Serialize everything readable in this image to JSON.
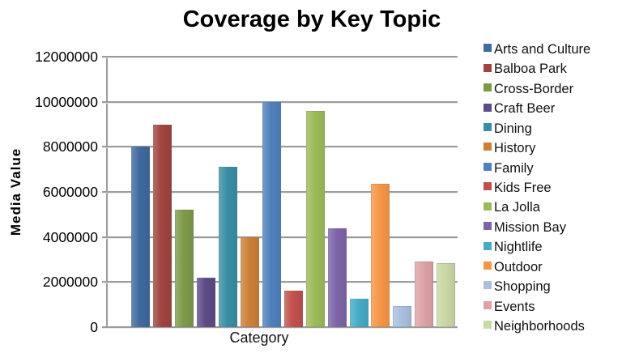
{
  "chart_data": {
    "type": "bar",
    "title": "Coverage by Key Topic",
    "xlabel": "Category",
    "ylabel": "Media Value",
    "ylim": [
      0,
      12000000
    ],
    "ytick_interval": 2000000,
    "yticks": [
      12000000,
      10000000,
      8000000,
      6000000,
      4000000,
      2000000,
      0
    ],
    "grid": true,
    "legend_position": "right",
    "categories": [
      "Arts and Culture",
      "Balboa Park",
      "Cross-Border",
      "Craft Beer",
      "Dining",
      "History",
      "Family",
      "Kids Free",
      "La Jolla",
      "Mission Bay",
      "Nightlife",
      "Outdoor",
      "Shopping",
      "Events",
      "Neighborhoods"
    ],
    "values": [
      8000000,
      9000000,
      5200000,
      2200000,
      7100000,
      4000000,
      10000000,
      1600000,
      9600000,
      4400000,
      1250000,
      6350000,
      950000,
      2900000,
      2850000
    ],
    "colors": [
      "#40699F",
      "#A1443F",
      "#7D9A49",
      "#5D4B87",
      "#3A8EA3",
      "#CC8036",
      "#4E81BD",
      "#C0504D",
      "#9BBB59",
      "#7D64A8",
      "#45ABC8",
      "#F79646",
      "#AABFE0",
      "#DCA2A4",
      "#C9D8A4"
    ],
    "gridline_color": "#9c9c9c",
    "background_color": "#ffffff",
    "title_color": "#000000"
  }
}
